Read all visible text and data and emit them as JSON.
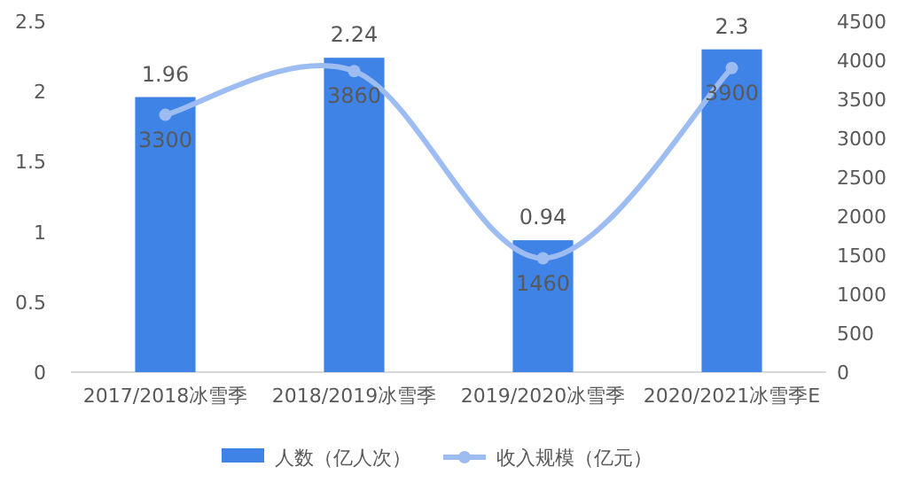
{
  "chart_data": {
    "type": "bar",
    "categories": [
      "2017/2018冰雪季",
      "2018/2019冰雪季",
      "2019/2020冰雪季",
      "2020/2021冰雪季E"
    ],
    "series": [
      {
        "name": "人数（亿人次）",
        "color": "#3f83e6",
        "values": [
          1.96,
          2.24,
          0.94,
          2.3
        ]
      },
      {
        "name": "收入规模（亿元）",
        "type": "line",
        "axis": "y2",
        "color": "#9dbdf2",
        "marker": "circle",
        "values": [
          3300,
          3860,
          1460,
          3900
        ]
      }
    ],
    "ylim": [
      0,
      2.5
    ],
    "yticks": [
      0,
      0.5,
      1,
      1.5,
      2,
      2.5
    ],
    "y2lim": [
      0,
      4500
    ],
    "y2ticks": [
      0,
      500,
      1000,
      1500,
      2000,
      2500,
      3000,
      3500,
      4000,
      4500
    ],
    "data_labels": true,
    "legend": "bottom"
  }
}
